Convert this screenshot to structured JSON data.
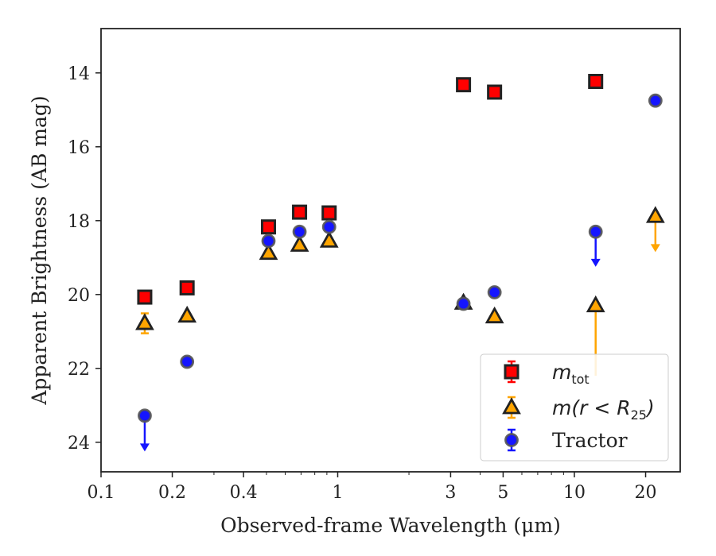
{
  "chart_data": {
    "type": "scatter",
    "xlabel": "Observed-frame Wavelength (μm)",
    "ylabel": "Apparent Brightness (AB mag)",
    "xscale": "log",
    "xlim": [
      0.1,
      28
    ],
    "ylim": [
      24.8,
      12.8
    ],
    "y_inverted": true,
    "x_ticks": [
      {
        "value": 0.1,
        "label": "0.1"
      },
      {
        "value": 0.2,
        "label": "0.2"
      },
      {
        "value": 0.4,
        "label": "0.4"
      },
      {
        "value": 1,
        "label": "1"
      },
      {
        "value": 3,
        "label": "3"
      },
      {
        "value": 5,
        "label": "5"
      },
      {
        "value": 10,
        "label": "10"
      },
      {
        "value": 20,
        "label": "20"
      }
    ],
    "y_ticks": [
      {
        "value": 14,
        "label": "14"
      },
      {
        "value": 16,
        "label": "16"
      },
      {
        "value": 18,
        "label": "18"
      },
      {
        "value": 20,
        "label": "20"
      },
      {
        "value": 22,
        "label": "22"
      },
      {
        "value": 24,
        "label": "24"
      }
    ],
    "grid": false,
    "legend_position": "lower-right",
    "colors": {
      "m_tot": "#ff0000",
      "m_r25": "#ffa500",
      "tractor": "#1515ff",
      "edge": "#222222"
    },
    "series": [
      {
        "legend_main": "m",
        "legend_sub": "tot",
        "marker": "square",
        "color": "#ff0000",
        "points": [
          {
            "x": 0.153,
            "y": 20.07
          },
          {
            "x": 0.231,
            "y": 19.82
          },
          {
            "x": 0.51,
            "y": 18.17
          },
          {
            "x": 0.69,
            "y": 17.77
          },
          {
            "x": 0.92,
            "y": 17.79
          },
          {
            "x": 3.4,
            "y": 14.32
          },
          {
            "x": 4.6,
            "y": 14.52
          },
          {
            "x": 12.3,
            "y": 14.23
          }
        ]
      },
      {
        "legend_main": "m(r < R",
        "legend_sub": "25",
        "legend_tail": ")",
        "marker": "triangle",
        "color": "#ffa500",
        "points": [
          {
            "x": 0.153,
            "y": 20.78,
            "err": 0.27
          },
          {
            "x": 0.231,
            "y": 20.58
          },
          {
            "x": 0.51,
            "y": 18.88
          },
          {
            "x": 0.69,
            "y": 18.66
          },
          {
            "x": 0.92,
            "y": 18.55
          },
          {
            "x": 3.4,
            "y": 20.23
          },
          {
            "x": 4.6,
            "y": 20.6
          },
          {
            "x": 12.3,
            "y": 20.3,
            "err_lo": 1.9
          },
          {
            "x": 22,
            "y": 17.88,
            "limit": true,
            "arrow_to": 18.85
          }
        ]
      },
      {
        "legend_main": "Tractor",
        "marker": "circle",
        "color": "#1515ff",
        "points": [
          {
            "x": 0.153,
            "y": 23.28,
            "limit": true,
            "arrow_to": 24.25
          },
          {
            "x": 0.231,
            "y": 21.82
          },
          {
            "x": 0.51,
            "y": 18.55
          },
          {
            "x": 0.69,
            "y": 18.3
          },
          {
            "x": 0.92,
            "y": 18.17
          },
          {
            "x": 3.4,
            "y": 20.25
          },
          {
            "x": 4.6,
            "y": 19.94
          },
          {
            "x": 12.3,
            "y": 18.3,
            "limit": true,
            "arrow_to": 19.25
          },
          {
            "x": 22,
            "y": 14.75
          }
        ]
      }
    ]
  }
}
